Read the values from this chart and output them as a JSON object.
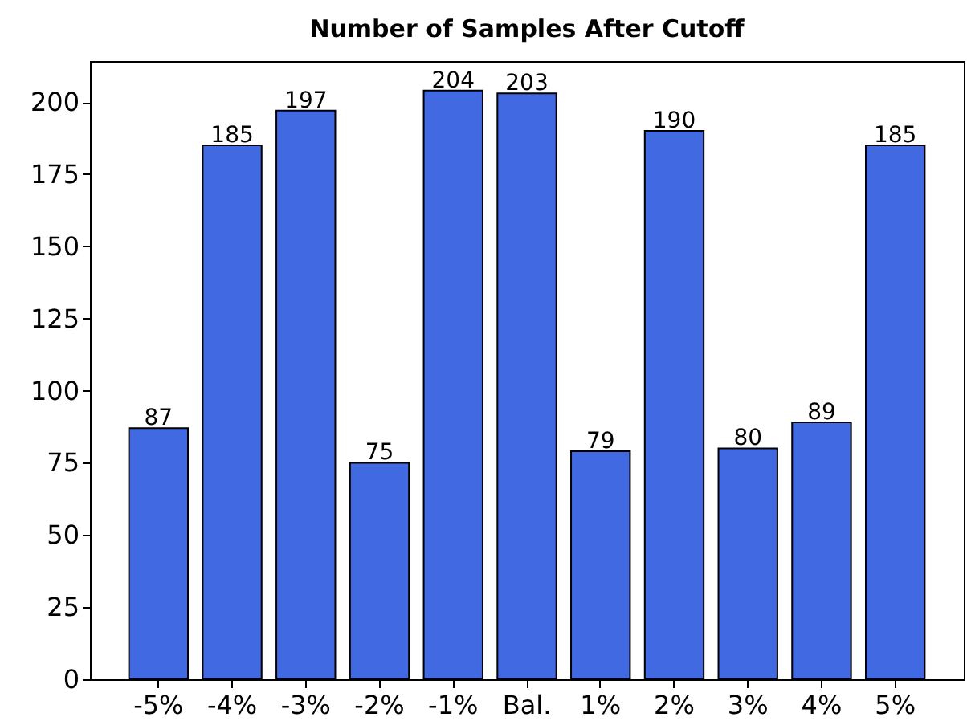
{
  "chart_data": {
    "type": "bar",
    "title": "Number of Samples After Cutoff",
    "categories": [
      "-5%",
      "-4%",
      "-3%",
      "-2%",
      "-1%",
      "Bal.",
      "1%",
      "2%",
      "3%",
      "4%",
      "5%"
    ],
    "values": [
      87,
      185,
      197,
      75,
      204,
      203,
      79,
      190,
      80,
      89,
      185
    ],
    "color": "#4169e1",
    "ylim": [
      0,
      214.2
    ],
    "yticks": [
      0,
      25,
      50,
      75,
      100,
      125,
      150,
      175,
      200
    ],
    "grid": false,
    "data_labels": true
  }
}
